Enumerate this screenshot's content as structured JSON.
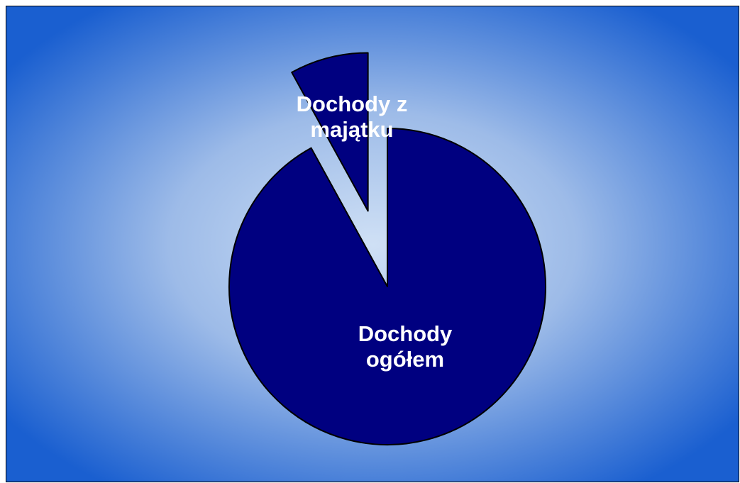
{
  "chart_data": {
    "type": "pie",
    "title": "",
    "categories": [
      "Dochody ogółem",
      "Dochody z majątku"
    ],
    "values": [
      92,
      8
    ],
    "slices": [
      {
        "label_lines": [
          "Dochody",
          "ogółem"
        ],
        "value": 92,
        "exploded": false
      },
      {
        "label_lines": [
          "Dochody z",
          "majątku"
        ],
        "value": 8,
        "exploded": true
      }
    ],
    "legend": "none",
    "start": "top, clockwise",
    "slice_color": "#000080",
    "outline_color": "#000000",
    "label_color": "#ffffff",
    "background": {
      "edge_color": "#1a5fd0",
      "center_color": "#cfe0f5"
    }
  }
}
